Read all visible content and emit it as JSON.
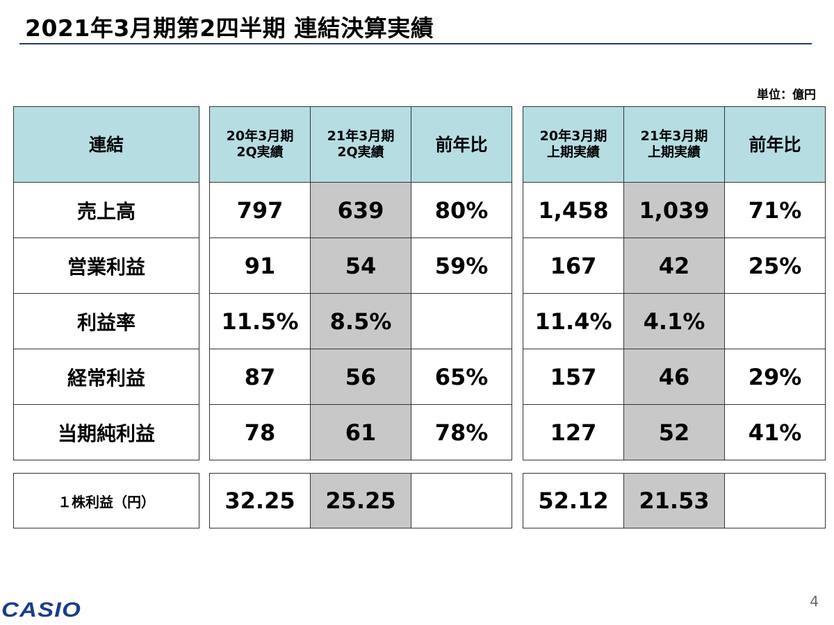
{
  "title": "2021年3月期第2四半期 連結決算実績",
  "unit": "単位：億円",
  "left_header": "連結",
  "row_labels": [
    "売上高",
    "営業利益",
    "利益率",
    "経常利益",
    "当期純利益"
  ],
  "eps_label": "１株利益（円）",
  "quarter_table": {
    "headers": [
      {
        "line1": "20年3月期",
        "line2": "2Q実績"
      },
      {
        "line1": "21年3月期",
        "line2": "2Q実績"
      },
      {
        "line1": "前年比",
        "line2": ""
      }
    ],
    "rows": [
      [
        "797",
        "639",
        "80%"
      ],
      [
        "91",
        "54",
        "59%"
      ],
      [
        "11.5%",
        "8.5%",
        ""
      ],
      [
        "87",
        "56",
        "65%"
      ],
      [
        "78",
        "61",
        "78%"
      ]
    ],
    "eps": [
      "32.25",
      "25.25",
      ""
    ]
  },
  "half_table": {
    "headers": [
      {
        "line1": "20年3月期",
        "line2": "上期実績"
      },
      {
        "line1": "21年3月期",
        "line2": "上期実績"
      },
      {
        "line1": "前年比",
        "line2": ""
      }
    ],
    "rows": [
      [
        "1,458",
        "1,039",
        "71%"
      ],
      [
        "167",
        "42",
        "25%"
      ],
      [
        "11.4%",
        "4.1%",
        ""
      ],
      [
        "157",
        "46",
        "29%"
      ],
      [
        "127",
        "52",
        "41%"
      ]
    ],
    "eps": [
      "52.12",
      "21.53",
      ""
    ]
  },
  "colors": {
    "header_bg": "#b5dde2",
    "highlight_bg": "#c8c8c8",
    "logo": "#1a3c8c",
    "rule": "#1f3a7a"
  },
  "logo_text": "CASIO",
  "page_number": "4"
}
